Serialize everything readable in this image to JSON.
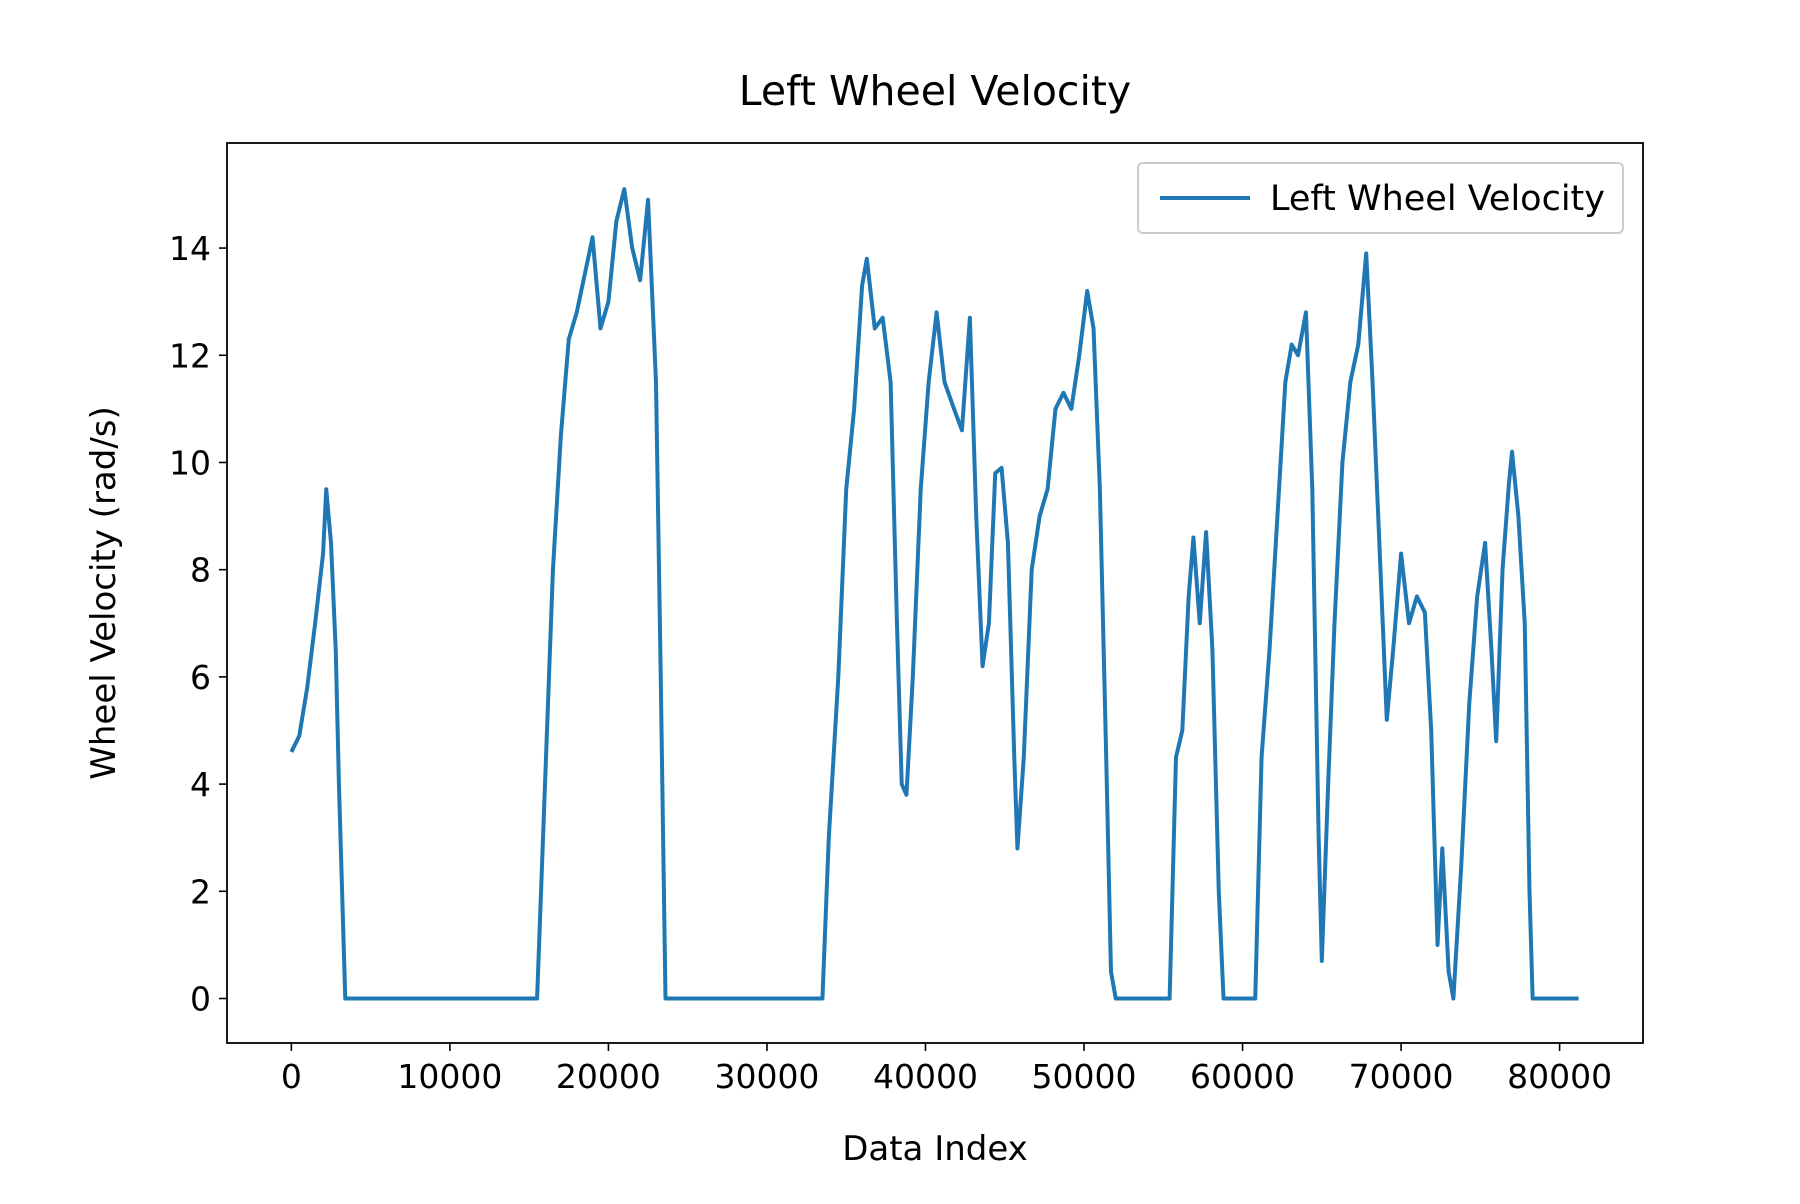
{
  "chart_data": {
    "type": "line",
    "title": "Left Wheel Velocity",
    "x_label": "Data Index",
    "y_label": "Wheel Velocity (rad/s)",
    "xlim": [
      -4060,
      85260
    ],
    "ylim": [
      -0.83,
      15.96
    ],
    "xticks": [
      0,
      10000,
      20000,
      30000,
      40000,
      50000,
      60000,
      70000,
      80000
    ],
    "yticks": [
      0,
      2,
      4,
      6,
      8,
      10,
      12,
      14
    ],
    "legend": "upper right",
    "x": [
      0,
      500,
      1000,
      1500,
      2000,
      2200,
      2500,
      2800,
      3000,
      3200,
      3400,
      15500,
      16000,
      16500,
      17000,
      17500,
      18000,
      18500,
      19000,
      19500,
      20000,
      20500,
      21000,
      21500,
      22000,
      22500,
      23000,
      23300,
      23600,
      33500,
      33900,
      34500,
      35000,
      35500,
      36000,
      36300,
      36800,
      37300,
      37800,
      38200,
      38500,
      38800,
      39200,
      39700,
      40200,
      40700,
      41200,
      41800,
      42300,
      42800,
      43200,
      43600,
      44000,
      44400,
      44800,
      45200,
      45600,
      45800,
      46200,
      46700,
      47200,
      47700,
      48200,
      48700,
      49200,
      49700,
      50200,
      50600,
      51000,
      51400,
      51700,
      52000,
      55400,
      55800,
      56200,
      56600,
      56900,
      57300,
      57700,
      58100,
      58500,
      58800,
      60800,
      61200,
      61700,
      62200,
      62700,
      63100,
      63500,
      64000,
      64400,
      64800,
      65000,
      65400,
      65800,
      66300,
      66800,
      67300,
      67800,
      68200,
      68700,
      69100,
      69500,
      70000,
      70500,
      71000,
      71500,
      71900,
      72300,
      72600,
      73000,
      73300,
      73800,
      74300,
      74800,
      75300,
      75700,
      76000,
      76400,
      76800,
      77000,
      77400,
      77800,
      78100,
      78300,
      81200
    ],
    "series": [
      {
        "name": "Left Wheel Velocity",
        "color": "#1f77b4",
        "values": [
          4.6,
          4.9,
          5.8,
          7.0,
          8.3,
          9.5,
          8.5,
          6.5,
          4.0,
          2.0,
          0,
          0,
          4,
          8,
          10.5,
          12.3,
          12.8,
          13.5,
          14.2,
          12.5,
          13.0,
          14.5,
          15.1,
          14.0,
          13.4,
          14.9,
          11.5,
          6,
          0,
          0,
          3,
          6,
          9.5,
          11.0,
          13.3,
          13.8,
          12.5,
          12.7,
          11.5,
          7.0,
          4.0,
          3.8,
          6.0,
          9.5,
          11.5,
          12.8,
          11.5,
          11.0,
          10.6,
          12.7,
          9.0,
          6.2,
          7.0,
          9.8,
          9.9,
          8.5,
          4.5,
          2.8,
          4.5,
          8.0,
          9.0,
          9.5,
          11.0,
          11.3,
          11.0,
          12.0,
          13.2,
          12.5,
          9.5,
          4.5,
          0.5,
          0,
          0,
          4.5,
          5.0,
          7.5,
          8.6,
          7.0,
          8.7,
          6.5,
          2.0,
          0,
          0,
          4.5,
          6.5,
          9.0,
          11.5,
          12.2,
          12.0,
          12.8,
          9.5,
          3.0,
          0.7,
          4.0,
          7.0,
          10.0,
          11.5,
          12.2,
          13.9,
          11.5,
          8.0,
          5.2,
          6.5,
          8.3,
          7.0,
          7.5,
          7.2,
          5.0,
          1.0,
          2.8,
          0.5,
          0,
          2.5,
          5.5,
          7.5,
          8.5,
          6.5,
          4.8,
          8.0,
          9.6,
          10.2,
          9.0,
          7.0,
          2.0,
          0,
          0
        ]
      }
    ]
  }
}
